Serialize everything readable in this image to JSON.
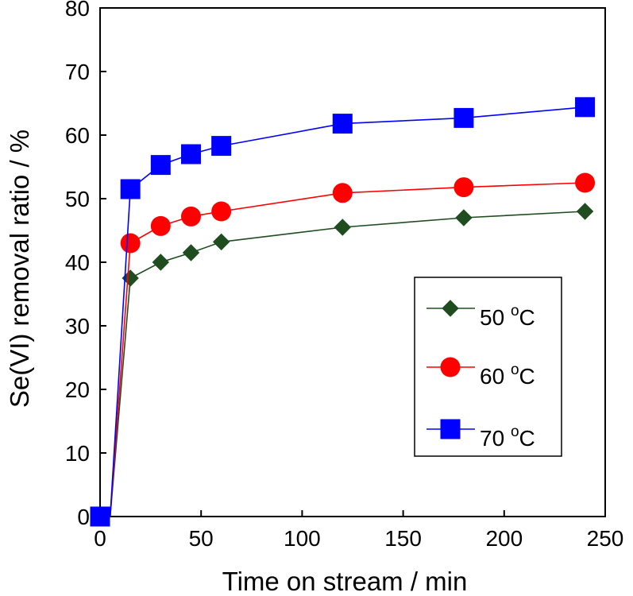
{
  "chart_data": {
    "type": "line",
    "title": "",
    "xlabel": "Time on stream / min",
    "ylabel": "Se(VI) removal ratio / %",
    "xlim": [
      0,
      250
    ],
    "ylim": [
      0,
      80
    ],
    "x_ticks": [
      "0",
      "50",
      "100",
      "150",
      "200",
      "250"
    ],
    "y_ticks": [
      "0",
      "10",
      "20",
      "30",
      "40",
      "50",
      "60",
      "70",
      "80"
    ],
    "grid": false,
    "legend_position": "right-middle",
    "series": [
      {
        "name": "50 °C",
        "label_value": "50",
        "label_sup": "o",
        "label_unit": "C",
        "color": "#1f4d1f",
        "marker": "diamond",
        "x": [
          0,
          5,
          15,
          30,
          45,
          60,
          120,
          180,
          240
        ],
        "y": [
          0,
          0,
          37.5,
          40,
          41.5,
          43.2,
          45.5,
          47,
          48
        ]
      },
      {
        "name": "60 °C",
        "label_value": "60",
        "label_sup": "o",
        "label_unit": "C",
        "color": "#ff0000",
        "marker": "circle",
        "x": [
          0,
          5,
          15,
          30,
          45,
          60,
          120,
          180,
          240
        ],
        "y": [
          0,
          0,
          43,
          45.7,
          47.2,
          48,
          50.9,
          51.8,
          52.5
        ]
      },
      {
        "name": "70 °C",
        "label_value": "70",
        "label_sup": "o",
        "label_unit": "C",
        "color": "#0000ff",
        "marker": "square",
        "x": [
          0,
          5,
          15,
          30,
          45,
          60,
          120,
          180,
          240
        ],
        "y": [
          0,
          0,
          51.5,
          55.3,
          57,
          58.3,
          61.8,
          62.7,
          64.4
        ]
      }
    ]
  }
}
